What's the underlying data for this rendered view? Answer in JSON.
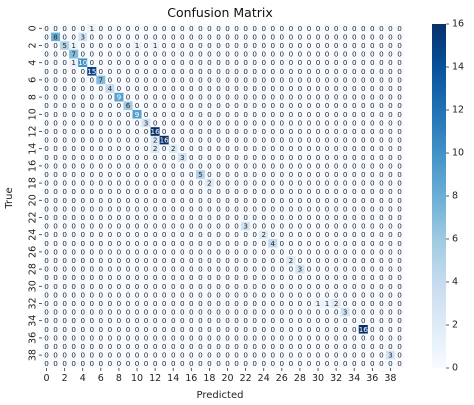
{
  "chart_data": {
    "type": "heatmap",
    "title": "Confusion Matrix",
    "xlabel": "Predicted",
    "ylabel": "True",
    "n_classes": 40,
    "x_tick_labels": [
      "0",
      "2",
      "4",
      "6",
      "8",
      "10",
      "12",
      "14",
      "16",
      "18",
      "20",
      "22",
      "24",
      "26",
      "28",
      "30",
      "32",
      "34",
      "36",
      "38"
    ],
    "y_tick_labels": [
      "0",
      "2",
      "4",
      "6",
      "8",
      "10",
      "12",
      "14",
      "16",
      "18",
      "20",
      "22",
      "24",
      "26",
      "28",
      "30",
      "32",
      "34",
      "36",
      "38"
    ],
    "colorbar": {
      "min": 0,
      "max": 16,
      "ticks": [
        0,
        2,
        4,
        6,
        8,
        10,
        12,
        14,
        16
      ],
      "colormap": "Blues"
    },
    "nonzero_cells": [
      {
        "row": 0,
        "col": 5,
        "value": 1
      },
      {
        "row": 1,
        "col": 1,
        "value": 8
      },
      {
        "row": 1,
        "col": 4,
        "value": 3
      },
      {
        "row": 2,
        "col": 2,
        "value": 5
      },
      {
        "row": 2,
        "col": 3,
        "value": 1
      },
      {
        "row": 2,
        "col": 10,
        "value": 1
      },
      {
        "row": 2,
        "col": 12,
        "value": 1
      },
      {
        "row": 3,
        "col": 3,
        "value": 7
      },
      {
        "row": 4,
        "col": 3,
        "value": 1
      },
      {
        "row": 4,
        "col": 4,
        "value": 10
      },
      {
        "row": 5,
        "col": 5,
        "value": 15
      },
      {
        "row": 6,
        "col": 6,
        "value": 7
      },
      {
        "row": 7,
        "col": 7,
        "value": 4
      },
      {
        "row": 8,
        "col": 8,
        "value": 9
      },
      {
        "row": 9,
        "col": 9,
        "value": 6
      },
      {
        "row": 10,
        "col": 10,
        "value": 9
      },
      {
        "row": 11,
        "col": 11,
        "value": 3
      },
      {
        "row": 12,
        "col": 12,
        "value": 16
      },
      {
        "row": 13,
        "col": 13,
        "value": 16
      },
      {
        "row": 13,
        "col": 12,
        "value": 2
      },
      {
        "row": 14,
        "col": 12,
        "value": 2
      },
      {
        "row": 14,
        "col": 14,
        "value": 2
      },
      {
        "row": 15,
        "col": 15,
        "value": 3
      },
      {
        "row": 17,
        "col": 17,
        "value": 5
      },
      {
        "row": 18,
        "col": 18,
        "value": 2
      },
      {
        "row": 23,
        "col": 22,
        "value": 3
      },
      {
        "row": 24,
        "col": 24,
        "value": 2
      },
      {
        "row": 25,
        "col": 25,
        "value": 4
      },
      {
        "row": 27,
        "col": 27,
        "value": 2
      },
      {
        "row": 28,
        "col": 28,
        "value": 3
      },
      {
        "row": 32,
        "col": 32,
        "value": 2
      },
      {
        "row": 32,
        "col": 31,
        "value": 1
      },
      {
        "row": 32,
        "col": 30,
        "value": 1
      },
      {
        "row": 33,
        "col": 33,
        "value": 3
      },
      {
        "row": 35,
        "col": 35,
        "value": 16
      },
      {
        "row": 38,
        "col": 38,
        "value": 3
      }
    ]
  }
}
